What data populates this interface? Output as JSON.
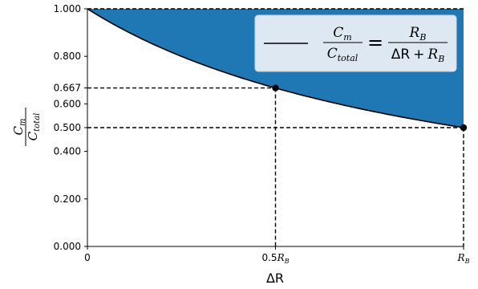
{
  "chart_data": {
    "type": "area",
    "x_ticks": [
      {
        "value": 0,
        "label": "0"
      },
      {
        "value": 0.5,
        "label": "0.5",
        "sub": "B"
      },
      {
        "value": 1,
        "label": "",
        "sub": "B"
      }
    ],
    "y_ticks": [
      "0.000",
      "0.200",
      "0.400",
      "0.500",
      "0.600",
      "0.667",
      "0.800",
      "1.000"
    ],
    "y_tick_values": [
      0.0,
      0.2,
      0.4,
      0.5,
      0.6,
      0.667,
      0.8,
      1.0
    ],
    "xlim": [
      0,
      1
    ],
    "ylim": [
      0,
      1
    ],
    "xlabel": "ΔR",
    "ylabel": {
      "num": "C",
      "num_sub": "m",
      "den": "C",
      "den_sub": "total"
    },
    "series": [
      {
        "formula": "C_m / C_total = R_B / (ΔR + R_B)",
        "x": [
          0,
          0.1,
          0.2,
          0.3,
          0.4,
          0.5,
          0.6,
          0.7,
          0.8,
          0.9,
          1.0
        ],
        "y": [
          1.0,
          0.909,
          0.833,
          0.769,
          0.714,
          0.667,
          0.625,
          0.588,
          0.556,
          0.526,
          0.5
        ]
      }
    ],
    "points": [
      {
        "x": 0.5,
        "y": 0.667
      },
      {
        "x": 1.0,
        "y": 0.5
      }
    ],
    "fill_between": {
      "upper": 1.0,
      "color": "#1f77b4"
    },
    "legend": {
      "placement": "top-right",
      "line_label": {
        "lhs_num": "C",
        "lhs_num_sub": "m",
        "lhs_den": "C",
        "lhs_den_sub": "total",
        "equals": "=",
        "rhs_num": "R",
        "rhs_num_sub": "B",
        "rhs_den_a": "ΔR",
        "rhs_den_plus": "+",
        "rhs_den_b": "R",
        "rhs_den_b_sub": "B"
      }
    },
    "colors": {
      "fill": "#1f77b4",
      "line": "#000000",
      "legend_bg": "#dde8f2"
    }
  }
}
